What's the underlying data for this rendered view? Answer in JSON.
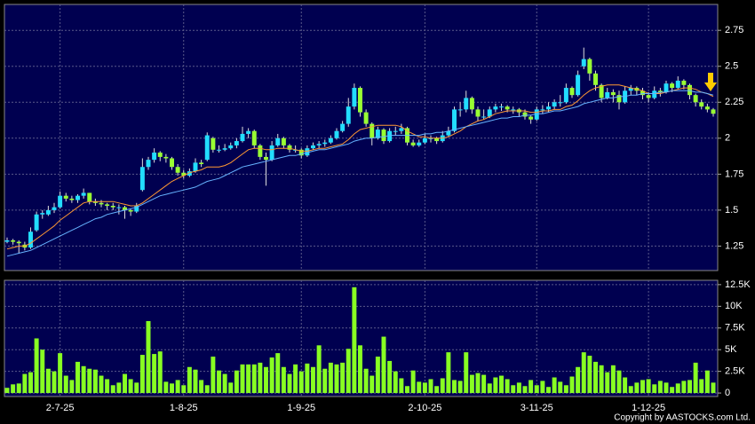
{
  "chart_data": {
    "type": "candlestick",
    "categories": [
      null,
      null,
      null,
      null,
      null,
      null,
      null,
      null,
      null,
      "2-7-25",
      null,
      null,
      null,
      null,
      null,
      null,
      null,
      null,
      null,
      null,
      null,
      null,
      null,
      null,
      null,
      null,
      null,
      null,
      null,
      null,
      "1-8-25",
      null,
      null,
      null,
      null,
      null,
      null,
      null,
      null,
      null,
      null,
      null,
      null,
      null,
      null,
      null,
      null,
      null,
      null,
      null,
      "1-9-25",
      null,
      null,
      null,
      null,
      null,
      null,
      null,
      null,
      null,
      null,
      null,
      null,
      null,
      null,
      null,
      null,
      null,
      null,
      null,
      null,
      "2-10-25",
      null,
      null,
      null,
      null,
      null,
      null,
      null,
      null,
      null,
      null,
      null,
      null,
      null,
      null,
      null,
      null,
      null,
      null,
      "3-11-25",
      null,
      null,
      null,
      null,
      null,
      null,
      null,
      null,
      null,
      null,
      null,
      null,
      null,
      null,
      null,
      null,
      null,
      null,
      "1-12-25",
      null,
      null,
      null,
      null,
      null,
      null,
      null,
      null,
      null,
      null,
      null
    ],
    "ohlc": [
      [
        1.28,
        1.31,
        1.27,
        1.29
      ],
      [
        1.29,
        1.3,
        1.26,
        1.28
      ],
      [
        1.28,
        1.29,
        1.2,
        1.27
      ],
      [
        1.26,
        1.28,
        1.22,
        1.24
      ],
      [
        1.24,
        1.38,
        1.23,
        1.35
      ],
      [
        1.36,
        1.49,
        1.35,
        1.47
      ],
      [
        1.47,
        1.5,
        1.44,
        1.48
      ],
      [
        1.47,
        1.53,
        1.46,
        1.5
      ],
      [
        1.5,
        1.55,
        1.48,
        1.52
      ],
      [
        1.52,
        1.63,
        1.51,
        1.6
      ],
      [
        1.6,
        1.62,
        1.56,
        1.58
      ],
      [
        1.58,
        1.6,
        1.55,
        1.57
      ],
      [
        1.57,
        1.61,
        1.55,
        1.6
      ],
      [
        1.6,
        1.65,
        1.58,
        1.62
      ],
      [
        1.62,
        1.62,
        1.54,
        1.56
      ],
      [
        1.56,
        1.58,
        1.53,
        1.55
      ],
      [
        1.55,
        1.57,
        1.52,
        1.54
      ],
      [
        1.54,
        1.55,
        1.5,
        1.53
      ],
      [
        1.53,
        1.55,
        1.5,
        1.52
      ],
      [
        1.52,
        1.54,
        1.47,
        1.52
      ],
      [
        1.52,
        1.53,
        1.44,
        1.5
      ],
      [
        1.5,
        1.51,
        1.46,
        1.49
      ],
      [
        1.49,
        1.55,
        1.48,
        1.53
      ],
      [
        1.64,
        1.86,
        1.63,
        1.8
      ],
      [
        1.8,
        1.87,
        1.78,
        1.85
      ],
      [
        1.85,
        1.93,
        1.83,
        1.9
      ],
      [
        1.9,
        1.91,
        1.84,
        1.87
      ],
      [
        1.87,
        1.89,
        1.83,
        1.86
      ],
      [
        1.86,
        1.87,
        1.78,
        1.8
      ],
      [
        1.8,
        1.82,
        1.74,
        1.76
      ],
      [
        1.76,
        1.78,
        1.72,
        1.74
      ],
      [
        1.74,
        1.79,
        1.73,
        1.77
      ],
      [
        1.77,
        1.86,
        1.76,
        1.83
      ],
      [
        1.83,
        1.85,
        1.8,
        1.82
      ],
      [
        1.85,
        2.04,
        1.84,
        2.02
      ],
      [
        2.0,
        2.01,
        1.9,
        1.92
      ],
      [
        1.92,
        1.95,
        1.9,
        1.92
      ],
      [
        1.92,
        1.96,
        1.91,
        1.93
      ],
      [
        1.93,
        1.97,
        1.92,
        1.95
      ],
      [
        1.95,
        2.0,
        1.93,
        1.98
      ],
      [
        1.98,
        2.08,
        1.97,
        2.03
      ],
      [
        2.03,
        2.07,
        2.0,
        2.05
      ],
      [
        2.05,
        2.06,
        1.93,
        1.95
      ],
      [
        1.95,
        1.96,
        1.85,
        1.87
      ],
      [
        1.87,
        1.9,
        1.67,
        1.85
      ],
      [
        1.85,
        1.98,
        1.84,
        1.95
      ],
      [
        1.95,
        2.03,
        1.94,
        2.0
      ],
      [
        2.0,
        2.01,
        1.93,
        1.95
      ],
      [
        1.95,
        1.96,
        1.9,
        1.92
      ],
      [
        1.92,
        1.95,
        1.9,
        1.92
      ],
      [
        1.92,
        1.93,
        1.86,
        1.88
      ],
      [
        1.88,
        1.95,
        1.87,
        1.93
      ],
      [
        1.93,
        1.97,
        1.92,
        1.95
      ],
      [
        1.95,
        1.98,
        1.93,
        1.96
      ],
      [
        1.96,
        1.99,
        1.94,
        1.97
      ],
      [
        1.97,
        2.02,
        1.96,
        2.0
      ],
      [
        2.0,
        2.07,
        1.99,
        2.05
      ],
      [
        2.05,
        2.12,
        2.04,
        2.1
      ],
      [
        2.1,
        2.28,
        2.08,
        2.22
      ],
      [
        2.22,
        2.38,
        2.2,
        2.35
      ],
      [
        2.35,
        2.36,
        2.15,
        2.18
      ],
      [
        2.18,
        2.2,
        2.08,
        2.1
      ],
      [
        2.1,
        2.11,
        1.95,
        2.0
      ],
      [
        2.0,
        2.08,
        1.99,
        2.06
      ],
      [
        2.06,
        2.07,
        1.96,
        1.98
      ],
      [
        1.98,
        2.07,
        1.97,
        2.05
      ],
      [
        2.05,
        2.08,
        2.02,
        2.05
      ],
      [
        2.05,
        2.1,
        2.03,
        2.07
      ],
      [
        2.07,
        2.08,
        1.95,
        1.97
      ],
      [
        1.97,
        1.99,
        1.94,
        1.95
      ],
      [
        1.95,
        1.99,
        1.94,
        1.97
      ],
      [
        1.97,
        2.03,
        1.96,
        2.0
      ],
      [
        2.0,
        2.02,
        1.97,
        2.0
      ],
      [
        2.0,
        2.01,
        1.96,
        1.98
      ],
      [
        1.98,
        2.05,
        1.97,
        2.02
      ],
      [
        2.02,
        2.08,
        2.01,
        2.05
      ],
      [
        2.05,
        2.22,
        2.04,
        2.2
      ],
      [
        2.2,
        2.25,
        2.15,
        2.2
      ],
      [
        2.2,
        2.33,
        2.18,
        2.28
      ],
      [
        2.28,
        2.29,
        2.17,
        2.2
      ],
      [
        2.2,
        2.22,
        2.12,
        2.15
      ],
      [
        2.15,
        2.2,
        2.13,
        2.15
      ],
      [
        2.15,
        2.22,
        2.14,
        2.2
      ],
      [
        2.2,
        2.24,
        2.18,
        2.22
      ],
      [
        2.22,
        2.24,
        2.19,
        2.22
      ],
      [
        2.22,
        2.23,
        2.18,
        2.2
      ],
      [
        2.2,
        2.22,
        2.17,
        2.2
      ],
      [
        2.2,
        2.21,
        2.15,
        2.18
      ],
      [
        2.18,
        2.2,
        2.13,
        2.15
      ],
      [
        2.15,
        2.16,
        2.1,
        2.13
      ],
      [
        2.13,
        2.22,
        2.12,
        2.2
      ],
      [
        2.2,
        2.23,
        2.17,
        2.2
      ],
      [
        2.2,
        2.25,
        2.18,
        2.22
      ],
      [
        2.22,
        2.27,
        2.2,
        2.25
      ],
      [
        2.25,
        2.3,
        2.22,
        2.25
      ],
      [
        2.25,
        2.38,
        2.24,
        2.35
      ],
      [
        2.35,
        2.36,
        2.28,
        2.3
      ],
      [
        2.3,
        2.47,
        2.29,
        2.44
      ],
      [
        2.5,
        2.63,
        2.48,
        2.55
      ],
      [
        2.55,
        2.56,
        2.4,
        2.45
      ],
      [
        2.45,
        2.47,
        2.33,
        2.37
      ],
      [
        2.37,
        2.38,
        2.25,
        2.28
      ],
      [
        2.28,
        2.35,
        2.27,
        2.32
      ],
      [
        2.32,
        2.34,
        2.25,
        2.3
      ],
      [
        2.3,
        2.33,
        2.2,
        2.25
      ],
      [
        2.25,
        2.36,
        2.24,
        2.33
      ],
      [
        2.33,
        2.37,
        2.3,
        2.35
      ],
      [
        2.35,
        2.36,
        2.3,
        2.33
      ],
      [
        2.33,
        2.35,
        2.27,
        2.3
      ],
      [
        2.3,
        2.32,
        2.25,
        2.28
      ],
      [
        2.28,
        2.36,
        2.27,
        2.33
      ],
      [
        2.33,
        2.35,
        2.29,
        2.32
      ],
      [
        2.32,
        2.4,
        2.31,
        2.38
      ],
      [
        2.38,
        2.39,
        2.32,
        2.35
      ],
      [
        2.35,
        2.43,
        2.34,
        2.4
      ],
      [
        2.4,
        2.41,
        2.34,
        2.37
      ],
      [
        2.37,
        2.38,
        2.27,
        2.3
      ],
      [
        2.3,
        2.31,
        2.22,
        2.25
      ],
      [
        2.25,
        2.27,
        2.2,
        2.22
      ],
      [
        2.22,
        2.24,
        2.18,
        2.2
      ],
      [
        2.2,
        2.21,
        2.15,
        2.17
      ]
    ],
    "up_color": "#22ddff",
    "down_color": "#99ff33",
    "lines": [
      {
        "color": "#ff9933",
        "values": [
          1.23,
          1.24,
          1.25,
          1.25,
          1.27,
          1.3,
          1.33,
          1.36,
          1.39,
          1.43,
          1.46,
          1.49,
          1.52,
          1.55,
          1.56,
          1.56,
          1.56,
          1.56,
          1.56,
          1.55,
          1.54,
          1.53,
          1.53,
          1.55,
          1.58,
          1.61,
          1.64,
          1.67,
          1.7,
          1.72,
          1.74,
          1.76,
          1.77,
          1.78,
          1.8,
          1.8,
          1.8,
          1.81,
          1.83,
          1.86,
          1.89,
          1.92,
          1.93,
          1.93,
          1.92,
          1.92,
          1.93,
          1.93,
          1.93,
          1.92,
          1.91,
          1.91,
          1.92,
          1.93,
          1.93,
          1.94,
          1.95,
          1.96,
          1.99,
          2.03,
          2.06,
          2.07,
          2.08,
          2.09,
          2.09,
          2.09,
          2.09,
          2.08,
          2.05,
          2.03,
          2.01,
          2.01,
          2.0,
          2.0,
          2.0,
          2.01,
          2.03,
          2.05,
          2.08,
          2.1,
          2.12,
          2.13,
          2.15,
          2.17,
          2.18,
          2.19,
          2.19,
          2.19,
          2.19,
          2.18,
          2.18,
          2.19,
          2.19,
          2.2,
          2.2,
          2.22,
          2.23,
          2.26,
          2.3,
          2.33,
          2.35,
          2.36,
          2.37,
          2.37,
          2.37,
          2.36,
          2.35,
          2.34,
          2.33,
          2.31,
          2.31,
          2.31,
          2.32,
          2.33,
          2.34,
          2.35,
          2.35,
          2.34,
          2.32,
          2.31,
          2.29
        ]
      },
      {
        "color": "#66b3ff",
        "values": [
          1.18,
          1.19,
          1.2,
          1.21,
          1.22,
          1.24,
          1.26,
          1.28,
          1.3,
          1.32,
          1.34,
          1.36,
          1.38,
          1.4,
          1.42,
          1.44,
          1.45,
          1.47,
          1.48,
          1.49,
          1.5,
          1.51,
          1.52,
          1.54,
          1.56,
          1.58,
          1.6,
          1.61,
          1.62,
          1.63,
          1.64,
          1.65,
          1.66,
          1.68,
          1.7,
          1.71,
          1.72,
          1.74,
          1.76,
          1.78,
          1.8,
          1.81,
          1.82,
          1.83,
          1.84,
          1.85,
          1.86,
          1.87,
          1.88,
          1.88,
          1.89,
          1.9,
          1.91,
          1.92,
          1.92,
          1.93,
          1.94,
          1.95,
          1.96,
          1.98,
          1.99,
          2.0,
          2.0,
          2.01,
          2.01,
          2.02,
          2.02,
          2.02,
          2.02,
          2.02,
          2.02,
          2.03,
          2.03,
          2.04,
          2.04,
          2.05,
          2.06,
          2.07,
          2.08,
          2.09,
          2.1,
          2.11,
          2.12,
          2.13,
          2.14,
          2.14,
          2.15,
          2.15,
          2.16,
          2.16,
          2.17,
          2.17,
          2.18,
          2.19,
          2.19,
          2.2,
          2.21,
          2.22,
          2.24,
          2.25,
          2.26,
          2.27,
          2.28,
          2.28,
          2.29,
          2.29,
          2.3,
          2.3,
          2.31,
          2.31,
          2.31,
          2.32,
          2.32,
          2.33,
          2.33,
          2.33,
          2.33,
          2.32,
          2.32,
          2.31,
          2.3
        ]
      }
    ],
    "ylim": [
      1.08,
      2.93
    ],
    "yticks": [
      1.25,
      1.5,
      1.75,
      2,
      2.25,
      2.5,
      2.75
    ],
    "grid": true,
    "volume": {
      "color": "#88ff22",
      "values": [
        600,
        1000,
        1100,
        2200,
        2400,
        6300,
        5000,
        2800,
        2500,
        4600,
        2000,
        1500,
        3600,
        3100,
        2800,
        2700,
        2000,
        1600,
        900,
        1200,
        2200,
        1600,
        1200,
        4400,
        8300,
        4500,
        4800,
        1300,
        1100,
        1500,
        900,
        3000,
        2700,
        1500,
        900,
        4200,
        2600,
        2200,
        1200,
        2600,
        3300,
        3300,
        3300,
        3500,
        3000,
        4100,
        4600,
        3000,
        2200,
        3300,
        2500,
        3400,
        3000,
        5500,
        2800,
        3500,
        3300,
        3500,
        5100,
        12200,
        5500,
        2800,
        2000,
        4200,
        6500,
        3700,
        2500,
        1700,
        800,
        2600,
        1300,
        1200,
        1600,
        800,
        1700,
        4700,
        1500,
        1400,
        4700,
        2100,
        2300,
        2100,
        1100,
        1800,
        2000,
        1600,
        900,
        1200,
        800,
        1500,
        900,
        1400,
        700,
        1800,
        1300,
        900,
        1900,
        3000,
        4700,
        4300,
        3600,
        3200,
        2400,
        3200,
        2600,
        1800,
        800,
        1200,
        1500,
        1600,
        1000,
        1400,
        1200,
        700,
        1100,
        1400,
        1500,
        3500,
        1600,
        2600,
        1200
      ],
      "ylim": [
        -400,
        13000
      ],
      "yticks": [
        0,
        {
          "value": 2500,
          "label": "2.5K"
        },
        {
          "value": 5000,
          "label": "5K"
        },
        {
          "value": 7500,
          "label": "7.5K"
        },
        {
          "value": 10000,
          "label": "10K"
        },
        {
          "value": 12500,
          "label": "12.5K"
        }
      ]
    },
    "copyright": "Copyright by AASTOCKS.com Ltd."
  }
}
